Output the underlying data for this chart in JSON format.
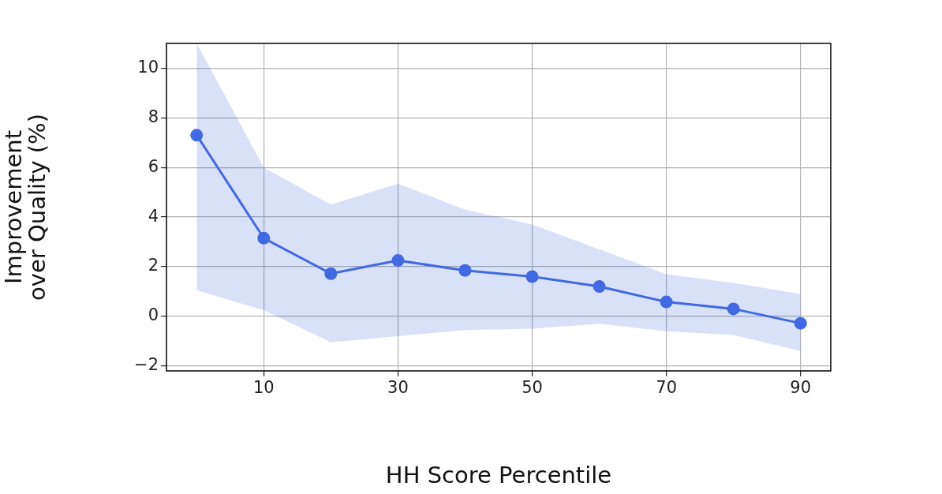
{
  "chart_data": {
    "type": "line",
    "xlabel": "HH Score Percentile",
    "ylabel": "Improvement\nover Quality (%)",
    "x": [
      0,
      10,
      20,
      30,
      40,
      50,
      60,
      70,
      80,
      90
    ],
    "series": [
      {
        "color": "#4169e1",
        "values": [
          7.3,
          3.15,
          1.72,
          2.25,
          1.85,
          1.6,
          1.2,
          0.58,
          0.3,
          -0.28
        ],
        "lower": [
          1.05,
          0.25,
          -1.05,
          -0.8,
          -0.55,
          -0.5,
          -0.3,
          -0.6,
          -0.75,
          -1.4
        ],
        "upper": [
          11,
          6.0,
          4.5,
          5.35,
          4.3,
          3.7,
          2.7,
          1.7,
          1.35,
          0.9
        ]
      }
    ],
    "xlim": [
      -4.5,
      94.5
    ],
    "xticks": [
      10,
      30,
      50,
      70,
      90
    ],
    "ylim": [
      -2.2,
      11
    ],
    "yticks": [
      -2,
      0,
      2,
      4,
      6,
      8,
      10
    ],
    "grid": true,
    "marker": "circle",
    "line_style": "solid"
  }
}
